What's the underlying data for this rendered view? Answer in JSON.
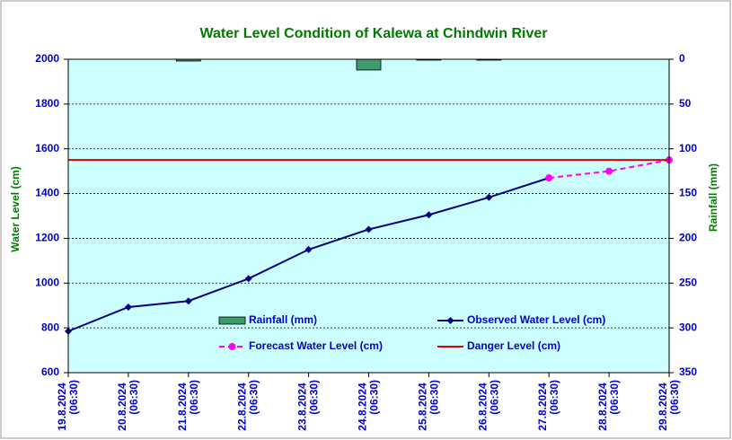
{
  "chart_data": {
    "type": "line",
    "title": "Water Level Condition of Kalewa at Chindwin River",
    "ylabel": "Water Level (cm)",
    "y2label": "Rainfall (mm)",
    "categories": [
      "19.8.2024 (06:30)",
      "20.8.2024 (06:30)",
      "21.8.2024 (06:30)",
      "22.8.2024 (06:30)",
      "23.8.2024 (06:30)",
      "24.8.2024 (06:30)",
      "25.8.2024 (06:30)",
      "26.8.2024 (06:30)",
      "27.8.2024 (06:30)",
      "28.8.2024 (06:30)",
      "29.8.2024 (06:30)"
    ],
    "series": [
      {
        "name": "Rainfall (mm)",
        "kind": "bar",
        "axis": "y2",
        "color": "#3c9c6c",
        "values": [
          0,
          0,
          2,
          0,
          0,
          12,
          1,
          1,
          0,
          0,
          0
        ]
      },
      {
        "name": "Observed Water Level (cm)",
        "kind": "line",
        "marker": "diamond",
        "color": "#000080",
        "values": [
          785,
          893,
          920,
          1020,
          1150,
          1240,
          1305,
          1383,
          1470,
          null,
          null
        ]
      },
      {
        "name": "Forecast Water Level (cm)",
        "kind": "line",
        "marker": "circle",
        "dashed": true,
        "color": "#ff00ff",
        "values": [
          null,
          null,
          null,
          null,
          null,
          null,
          null,
          null,
          1470,
          1500,
          1550
        ]
      },
      {
        "name": "Danger Level (cm)",
        "kind": "line",
        "color": "#e00000",
        "values": [
          1550,
          1550,
          1550,
          1550,
          1550,
          1550,
          1550,
          1550,
          1550,
          1550,
          1550
        ]
      }
    ],
    "ylim": [
      600,
      2000
    ],
    "yticks": [
      600,
      800,
      1000,
      1200,
      1400,
      1600,
      1800,
      2000
    ],
    "y2lim": [
      0,
      350
    ],
    "y2ticks": [
      0,
      50,
      100,
      150,
      200,
      250,
      300,
      350
    ],
    "y2_inverted": true,
    "grid": true
  }
}
